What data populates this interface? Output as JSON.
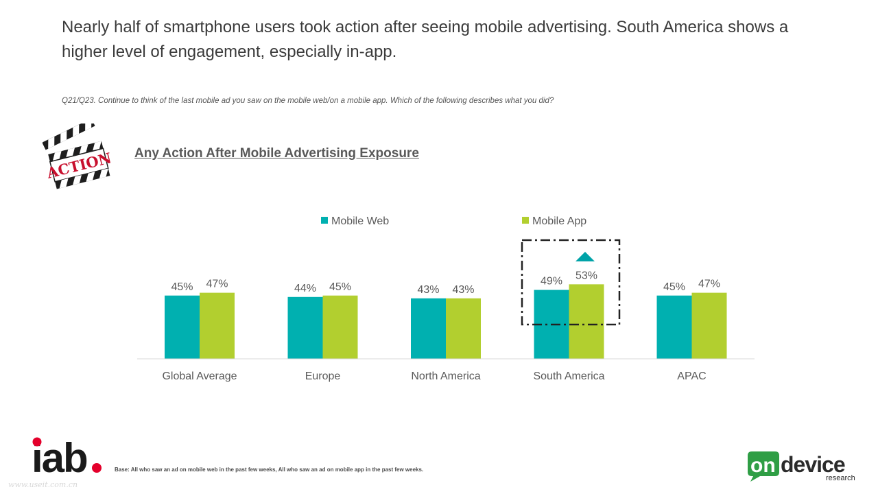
{
  "headline": "Nearly half of smartphone users took action after seeing mobile advertising. South America shows a higher level of engagement, especially in-app.",
  "question": "Q21/Q23. Continue to think of the last mobile ad you saw on the mobile web/on a mobile app. Which of the following describes what you did?",
  "footer": {
    "base_note": "Base: All who saw an ad on mobile web in the past few weeks, All who saw an ad on mobile app in the past few weeks.",
    "watermark": "www.useit.com.cn",
    "iab_logo": "iab.",
    "ondevice_logo": "ondevice research"
  },
  "clapper_label": "ACTION",
  "colors": {
    "mobile_web": "#00b0b0",
    "mobile_app": "#b2cf2f",
    "text": "#595959"
  },
  "chart_data": {
    "type": "bar",
    "title": "Any Action After Mobile Advertising Exposure",
    "categories": [
      "Global Average",
      "Europe",
      "North America",
      "South America",
      "APAC"
    ],
    "series": [
      {
        "name": "Mobile Web",
        "values": [
          45,
          44,
          43,
          49,
          45
        ],
        "labels": [
          "45%",
          "44%",
          "43%",
          "49%",
          "45%"
        ]
      },
      {
        "name": "Mobile App",
        "values": [
          47,
          45,
          43,
          53,
          47
        ],
        "labels": [
          "47%",
          "45%",
          "43%",
          "53%",
          "47%"
        ]
      }
    ],
    "ylim": [
      0,
      100
    ],
    "legend_position": "top",
    "highlight_category": "South America",
    "highlight_note": "upward arrow over Mobile App value",
    "grid": false
  }
}
